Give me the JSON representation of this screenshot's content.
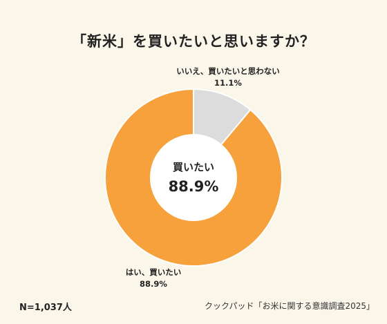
{
  "title": "「新米」を買いたいと思いますか？",
  "chart_data": {
    "type": "pie",
    "slices": [
      {
        "label": "はい、買いたい",
        "value": 88.9,
        "value_label": "88.9%",
        "color": "#f7a13c"
      },
      {
        "label": "いいえ、買いたいと思わない",
        "value": 11.1,
        "value_label": "11.1%",
        "color": "#dcdcdc"
      }
    ],
    "center_label": "買いたい",
    "center_value": "88.9%"
  },
  "footer": {
    "sample": "N=1,037人",
    "source": "クックパッド「お米に関する意識調査2025」"
  }
}
